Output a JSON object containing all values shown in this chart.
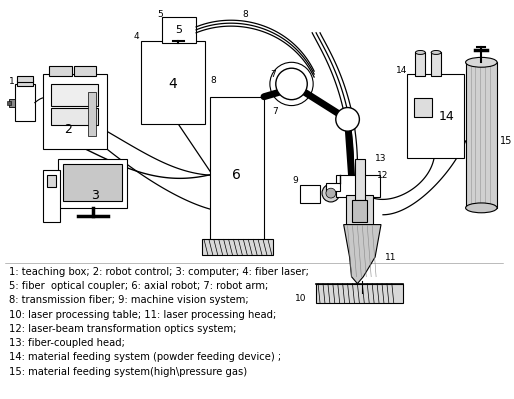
{
  "bg_color": "#ffffff",
  "legend_lines": [
    "1: teaching box; 2: robot control; 3: computer; 4: fiber laser;",
    "5: fiber  optical coupler; 6: axial robot; 7: robot arm;",
    "8: transmission fiber; 9: machine vision system;",
    "10: laser processing table; 11: laser processing head;",
    "12: laser-beam transformation optics system;",
    "13: fiber-coupled head;",
    "14: material feeding system (powder feeding device) ;",
    "15: material feeding system(high\\pressure gas)"
  ],
  "figsize": [
    5.14,
    3.99
  ],
  "dpi": 100
}
